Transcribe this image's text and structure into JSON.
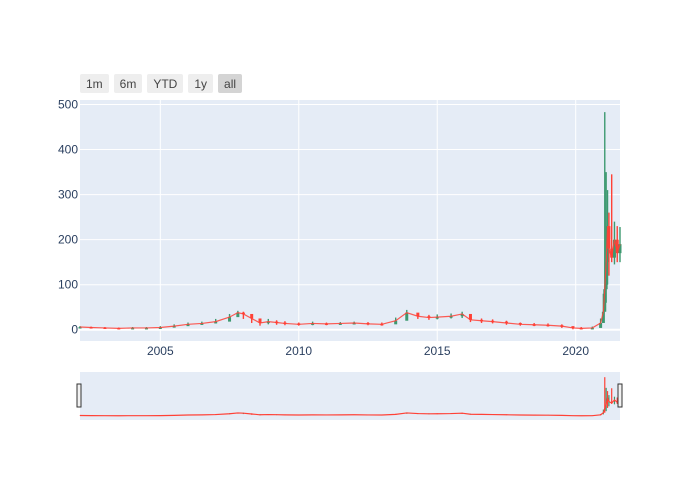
{
  "range_selector": {
    "buttons": [
      {
        "label": "1m",
        "active": false
      },
      {
        "label": "6m",
        "active": false
      },
      {
        "label": "YTD",
        "active": false
      },
      {
        "label": "1y",
        "active": false
      },
      {
        "label": "all",
        "active": true
      }
    ]
  },
  "colors": {
    "plot_bg": "#e5ecf6",
    "grid": "#ffffff",
    "increasing": "#3d9970",
    "decreasing": "#ff4136"
  },
  "chart_data": {
    "type": "candlestick",
    "title": "",
    "xlabel": "",
    "ylabel": "",
    "xlim": [
      2002.1,
      2021.6
    ],
    "ylim": [
      -25,
      510
    ],
    "x_ticks": [
      2005,
      2010,
      2015,
      2020
    ],
    "x_tick_labels": [
      "2005",
      "2010",
      "2015",
      "2020"
    ],
    "y_ticks": [
      0,
      100,
      200,
      300,
      400,
      500
    ],
    "y_tick_labels": [
      "0",
      "100",
      "200",
      "300",
      "400",
      "500"
    ],
    "grid": true,
    "legend": "none",
    "rangeslider": true,
    "series": [
      {
        "x": [
          2002.1,
          2002.5,
          2003.0,
          2003.5,
          2004.0,
          2004.5,
          2005.0,
          2005.5,
          2006.0,
          2006.5,
          2007.0,
          2007.5,
          2007.8,
          2008.0,
          2008.3,
          2008.6,
          2008.9,
          2009.2,
          2009.5,
          2010.0,
          2010.5,
          2011.0,
          2011.5,
          2012.0,
          2012.5,
          2013.0,
          2013.5,
          2013.9,
          2014.3,
          2014.7,
          2015.0,
          2015.5,
          2015.9,
          2016.2,
          2016.6,
          2017.0,
          2017.5,
          2018.0,
          2018.5,
          2019.0,
          2019.5,
          2019.9,
          2020.2,
          2020.6,
          2020.9,
          2021.0,
          2021.05,
          2021.1,
          2021.15,
          2021.2,
          2021.3,
          2021.4,
          2021.5,
          2021.6
        ],
        "close": [
          6,
          5,
          4,
          3,
          4,
          4,
          5,
          8,
          12,
          14,
          18,
          28,
          38,
          35,
          25,
          15,
          18,
          16,
          14,
          12,
          14,
          13,
          14,
          15,
          13,
          12,
          20,
          38,
          30,
          27,
          28,
          30,
          35,
          22,
          20,
          18,
          15,
          12,
          11,
          10,
          8,
          4,
          3,
          4,
          15,
          40,
          90,
          150,
          230,
          180,
          160,
          200,
          170,
          190
        ],
        "high": [
          8,
          7,
          6,
          5,
          6,
          6,
          8,
          12,
          16,
          18,
          24,
          35,
          42,
          40,
          33,
          22,
          24,
          21,
          19,
          16,
          18,
          16,
          17,
          18,
          17,
          16,
          27,
          44,
          36,
          33,
          34,
          36,
          40,
          28,
          25,
          23,
          20,
          16,
          15,
          14,
          12,
          7,
          6,
          7,
          25,
          80,
          483,
          350,
          310,
          260,
          345,
          240,
          230,
          228
        ],
        "low": [
          4,
          3,
          2,
          1,
          2,
          2,
          3,
          5,
          9,
          11,
          14,
          22,
          30,
          24,
          15,
          9,
          12,
          11,
          10,
          9,
          10,
          10,
          11,
          12,
          10,
          9,
          14,
          28,
          24,
          22,
          23,
          25,
          26,
          17,
          15,
          14,
          11,
          9,
          8,
          7,
          4,
          1,
          1,
          2,
          8,
          20,
          40,
          60,
          100,
          120,
          150,
          145,
          150,
          150
        ]
      }
    ]
  }
}
